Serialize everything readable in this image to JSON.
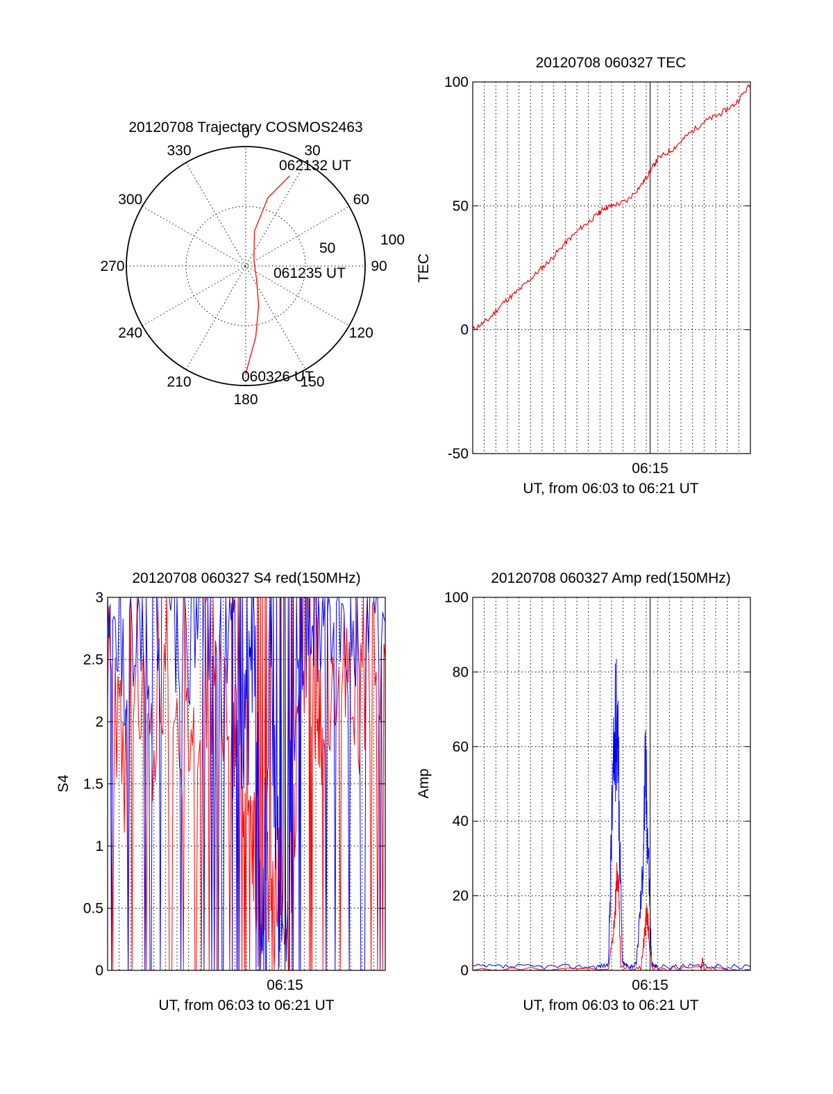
{
  "colors": {
    "red": "#ff0000",
    "blue": "#0000ff",
    "axis": "#000000",
    "background": "#ffffff"
  },
  "chart_data": [
    {
      "id": "trajectory",
      "type": "polar-trajectory",
      "title": "20120708 Trajectory COSMOS2463",
      "azimuth_labels": [
        "0",
        "30",
        "60",
        "90",
        "120",
        "150",
        "180",
        "210",
        "240",
        "270",
        "300",
        "330"
      ],
      "radial_labels": [
        "50",
        "100"
      ],
      "radial_max": 100,
      "points": [
        {
          "time": "062132 UT",
          "azimuth": 26,
          "zenith": 84
        },
        {
          "time": "061235 UT",
          "azimuth": 60,
          "zenith": 8
        },
        {
          "time": "060326 UT",
          "azimuth": 180,
          "zenith": 90
        }
      ],
      "track": [
        [
          26,
          84
        ],
        [
          18,
          60
        ],
        [
          14,
          30
        ],
        [
          30,
          14
        ],
        [
          60,
          8
        ],
        [
          140,
          14
        ],
        [
          162,
          35
        ],
        [
          172,
          60
        ],
        [
          180,
          90
        ]
      ],
      "line_color": "#ff0000"
    },
    {
      "id": "tec",
      "type": "line",
      "title": "20120708 060327 TEC",
      "xlabel": "UT, from 06:03 to 06:21 UT",
      "ylabel": "TEC",
      "ylim": [
        -50,
        100
      ],
      "yticks": [
        "100",
        "50",
        "0",
        "-50"
      ],
      "xticks": [
        "06:15"
      ],
      "x_range_minutes": [
        3.5,
        21.5
      ],
      "x_major_tick": 15,
      "x_minor_grid_step_minutes": 0.75,
      "series": [
        {
          "color": "#ff0000",
          "x": [
            3.5,
            4.5,
            5.5,
            6.5,
            7.5,
            8.5,
            9.5,
            10.5,
            11.5,
            12,
            12.5,
            13.5,
            14.5,
            15,
            15.5,
            16.5,
            17.5,
            18.5,
            19.5,
            20.5,
            21.5
          ],
          "y": [
            0,
            4,
            11,
            16,
            22,
            28,
            35,
            41,
            46,
            49,
            50,
            52,
            59,
            64,
            69,
            73,
            79,
            84,
            87,
            91,
            99
          ]
        }
      ]
    },
    {
      "id": "s4",
      "type": "line",
      "title": "20120708 060327 S4 red(150MHz)",
      "xlabel": "UT, from 06:03 to 06:21 UT",
      "ylabel": "S4",
      "ylim": [
        0,
        3
      ],
      "yticks": [
        "3",
        "2.5",
        "2",
        "1.5",
        "1",
        "0.5",
        "0"
      ],
      "xticks": [
        "06:15"
      ],
      "x_range_minutes": [
        3.5,
        21.5
      ],
      "x_major_tick": 15,
      "x_minor_grid_step_minutes": 0.75,
      "series": [
        {
          "color": "#ff0000",
          "x": [
            3.5,
            4.5,
            5.5,
            6.5,
            7.5,
            8.5,
            9.5,
            10.5,
            11.5,
            12,
            12.5,
            13,
            13.5,
            14,
            14.5,
            15,
            15.5,
            16,
            16.5,
            17,
            17.5,
            18.5,
            19.5,
            20.5,
            21.5
          ],
          "y": [
            2.6,
            1.6,
            2.2,
            1.8,
            2.4,
            1.7,
            2.1,
            2.3,
            2.0,
            1.6,
            1.1,
            0.9,
            0.15,
            0.8,
            0.7,
            0.2,
            1.0,
            2.5,
            2.8,
            2.2,
            1.8,
            2.6,
            2.0,
            2.4,
            2.5
          ]
        },
        {
          "color": "#0000ff",
          "x": [
            3.5,
            4.5,
            5.5,
            6.5,
            7.5,
            8.5,
            9.5,
            10.5,
            11.5,
            12,
            12.5,
            13,
            13.5,
            14,
            14.5,
            15,
            15.5,
            16,
            16.5,
            17,
            17.5,
            18.5,
            19.5,
            20.5,
            21.5
          ],
          "y": [
            2.9,
            2.5,
            2.8,
            2.6,
            2.9,
            2.7,
            2.8,
            2.9,
            2.6,
            2.2,
            1.8,
            2.8,
            0.2,
            2.6,
            0.9,
            0.25,
            2.0,
            2.9,
            2.7,
            2.9,
            2.8,
            2.9,
            2.7,
            2.9,
            2.8
          ]
        }
      ]
    },
    {
      "id": "amp",
      "type": "line",
      "title": "20120708 060327 Amp red(150MHz)",
      "xlabel": "UT, from 06:03 to 06:21 UT",
      "ylabel": "Amp",
      "ylim": [
        0,
        100
      ],
      "yticks": [
        "100",
        "80",
        "60",
        "40",
        "20",
        "0"
      ],
      "xticks": [
        "06:15"
      ],
      "x_range_minutes": [
        3.5,
        21.5
      ],
      "x_major_tick": 15,
      "x_minor_grid_step_minutes": 0.75,
      "series": [
        {
          "color": "#0000ff",
          "x": [
            3.5,
            6,
            9,
            11.5,
            12.3,
            12.5,
            12.7,
            12.9,
            13.0,
            13.2,
            13.6,
            14.1,
            14.5,
            14.7,
            14.9,
            15.1,
            15.4,
            17,
            19,
            21.5
          ],
          "y": [
            1,
            1,
            1,
            1,
            1.5,
            38,
            62,
            70,
            40,
            2,
            1,
            1.5,
            25,
            55,
            30,
            1.5,
            1,
            1,
            1,
            1
          ]
        },
        {
          "color": "#ff0000",
          "x": [
            3.5,
            12.3,
            12.6,
            12.9,
            13.1,
            14.4,
            14.6,
            14.8,
            15.0,
            15.2,
            18.3,
            18.4,
            18.5,
            21.5
          ],
          "y": [
            0,
            0.5,
            10,
            28,
            0.5,
            0.5,
            8,
            16,
            5,
            0.5,
            0.5,
            3,
            0.5,
            0
          ]
        }
      ]
    }
  ]
}
